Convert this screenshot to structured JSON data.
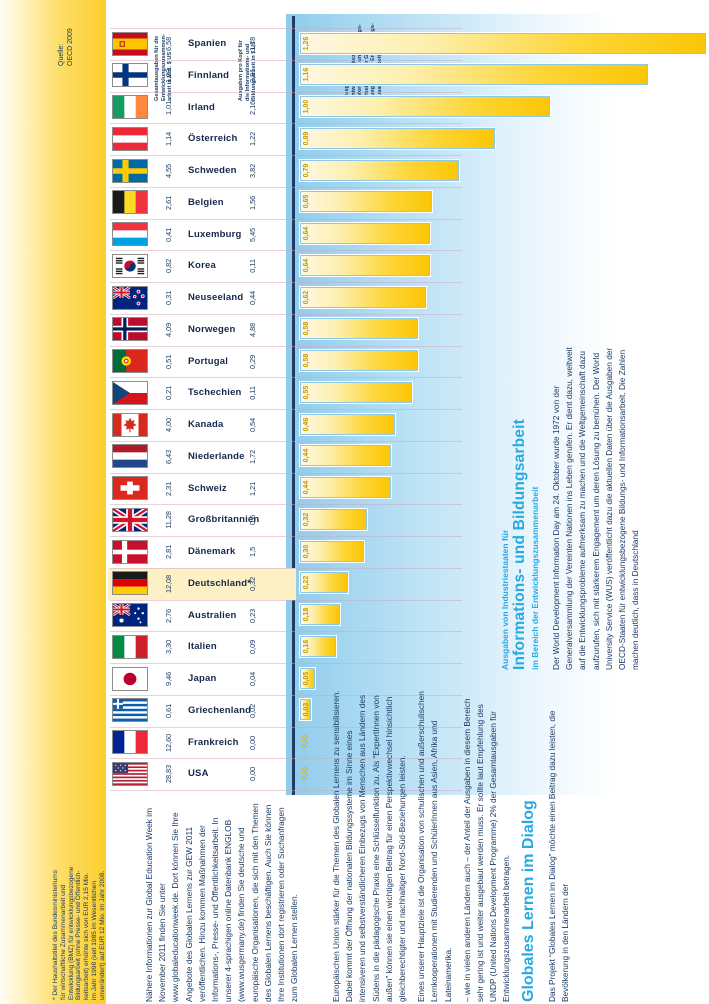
{
  "source": {
    "label": "Quelle:\nOECD 2009"
  },
  "chart_data": {
    "type": "bar",
    "title": "Ausgaben von Industriestaaten für Informations- und Bildungsarbeit im Bereich der Entwicklungszusammenarbeit",
    "orientation": "rotated page, horizontal bars",
    "column_headers": {
      "total": "Gesamtausgaben für die\nEntwicklungszusammen-\narbeit in Mrd. $ US",
      "per_capita": "Ausgaben pro Kopf für\ndie Informations- und\nBildungsarbeit in $ US",
      "bars": "Ausgaben für\nentwicklungsbezogene\nInformations- und Bildungs-\narbeit in % der Gesamt-\nausgaben der Entwicklungs-\nzusammenarbeit"
    },
    "categories": [
      "Spanien",
      "Finnland",
      "Irland",
      "Österreich",
      "Schweden",
      "Belgien",
      "Luxemburg",
      "Korea",
      "Neuseeland",
      "Norwegen",
      "Portugal",
      "Tschechien",
      "Kanada",
      "Niederlande",
      "Schweiz",
      "Großbritannien",
      "Dänemark",
      "Deutschland*",
      "Australien",
      "Italien",
      "Japan",
      "Griechenland",
      "Frankreich",
      "USA"
    ],
    "series": [
      {
        "name": "Gesamtausgaben Entwicklungszusammenarbeit (Mrd. $ US)",
        "labels": [
          "6,58",
          "1,29",
          "1,01",
          "1,14",
          "4,55",
          "2,61",
          "0,41",
          "0,82",
          "0,31",
          "4,09",
          "0,51",
          "0,21",
          "4,00",
          "6,43",
          "2,31",
          "11,28",
          "2,81",
          "12,08",
          "2,76",
          "3,30",
          "9,46",
          "0,61",
          "12,60",
          "28,83"
        ]
      },
      {
        "name": "Ausgaben pro Kopf ($ US)",
        "labels": [
          "1,78",
          "2,81",
          "2,16",
          "1,22",
          "3,82",
          "1,56",
          "5,45",
          "0,11",
          "0,44",
          "4,88",
          "0,29",
          "0,11",
          "0,54",
          "1,72",
          "1,21",
          "0,6",
          "1,5",
          "0,32",
          "0,23",
          "0,09",
          "0,04",
          "0,02",
          "0,00",
          "0,00"
        ]
      },
      {
        "name": "Informations- und Bildungsarbeit in % der Gesamtausgaben",
        "labels": [
          "1,26",
          "1,16",
          "1,00",
          "0,89",
          "0,79",
          "0,65",
          "0,64",
          "0,64",
          "0,62",
          "0,58",
          "0,58",
          "0,55",
          "0,46",
          "0,44",
          "0,44",
          "0,32",
          "0,30",
          "0,22",
          "0,18",
          "0,16",
          "0,05",
          "0,03",
          "0,00",
          "0,00"
        ],
        "values": [
          1.26,
          1.16,
          1.0,
          0.89,
          0.79,
          0.65,
          0.64,
          0.64,
          0.62,
          0.58,
          0.58,
          0.55,
          0.46,
          0.44,
          0.44,
          0.32,
          0.3,
          0.22,
          0.18,
          0.16,
          0.05,
          0.03,
          0.0,
          0.0
        ]
      }
    ],
    "highlighted_category": "Deutschland*",
    "flags": [
      "es",
      "fi",
      "ie",
      "at",
      "se",
      "be",
      "lu",
      "kr",
      "nz",
      "no",
      "pt",
      "cz",
      "ca",
      "nl",
      "ch",
      "gb",
      "dk",
      "de",
      "au",
      "it",
      "jp",
      "gr",
      "fr",
      "us"
    ]
  },
  "footnote": "* Der Haushaltstitel des Bundesministeriums\nfür wirtschaftliche Zusammenarbeit und\nEntwicklung (BMZ) für entwicklungsbezogene\nBildungsarbeit (ohne Presse- und Öffentlich-\nkeitsarbeit) erhöhte sich von EUR 2,15 Mio.\nim Jahr 1998 (seit 1985 im Wesentlichen\nunverändert) auf EUR 12 Mio. im Jahr 2008.",
  "articles": {
    "a1": {
      "kicker": "Ausgaben von Industriestaaten für",
      "title": "Informations- und Bildungsarbeit",
      "subtitle": "im Bereich der Entwicklungszusammenarbeit",
      "body": "Der World Development Information Day am 24. Oktober wurde 1972 von der Generalversammlung der Vereinten Nationen ins Leben gerufen. Er dient dazu, weltweit auf die Entwicklungsprobleme aufmerksam zu machen und die Weltgemeinschaft dazu aufzurufen, sich mit stärkerem Engagement um deren Lösung zu bemühen. Der World University Service (WUS) veröffentlicht dazu die aktuellen Daten über die Ausgaben der OECD-Staaten für entwicklungsbezogene Bildungs- und Informationsarbeit. Die Zahlen machen deutlich, dass in Deutschland",
      "continuation": "– wie in vielen anderen Ländern auch – der Anteil der Ausgaben in diesem Bereich sehr gering ist und weiter ausgebaut werden muss. Er sollte laut Empfehlung des UNDP (United Nations Development Programme) 2% der Gesamtausgaben für Entwicklungszusammenarbeit betragen."
    },
    "a2": {
      "heading": "Globales Lernen im Dialog",
      "p1a": "Das Projekt “Globales Lernen im Dialog” möchte einen Beitrag dazu leisten, die Bevölkerung in den Ländern der",
      "p1b": "Europäischen Union stärker für die Themen des Globalen Lernens zu sensibilisieren. Dabei kommt der Öffnung der nationalen Bildungssysteme im Sinne eines intensiveren und selbstverständlicheren Einbezugs von Menschen aus Ländern des Südens in die pädagogische Praxis eine Schlüsselfunktion zu. Als “ExpertInnen von außen” können sie einen wichtigen Beitrag für einen Perspektivwechsel hinsichtlich gleichberechtigter und nachhaltiger Nord-Süd-Beziehungen leisten.",
      "p2": "Eines unserer Hauptziele ist die Organisation von schulischen und außerschulischen Lernkooperationen mit Studierenden und SchülerInnen aus Asien, Afrika und Lateinamerika.",
      "p3": "Nähere Informationen zur Global Education Week im November 2011 finden Sie unter www.globaleducationweek.de. Dort können Sie Ihre Angebote des Globalen Lernens zur GEW 2011 veröffentlichen. Hinzu kommen Maßnahmen der Informations-, Presse- und Öffentlichkeitsarbeit. In unserer 4-sprachigen online Datenbank ENGLOB (www.wusgermany.de) finden Sie deutsche und europäische Organisationen, die sich mit den Themen des Globalen Lernens beschäftigen. Auch Sie können Ihre Institutionen dort registrieren oder Suchanfragen zum Globalen Lernen stellen."
    }
  }
}
